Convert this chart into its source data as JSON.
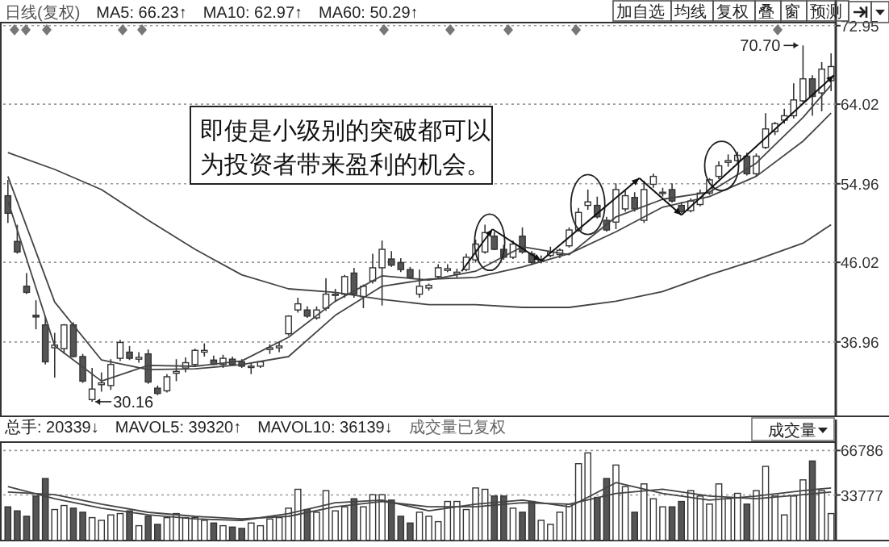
{
  "chart_data": [
    {
      "type": "candlestick",
      "categories": [
        null,
        null,
        null,
        null,
        null,
        null,
        null,
        null,
        null,
        null,
        null,
        null,
        null,
        null,
        null,
        null,
        null,
        null,
        null,
        null,
        null,
        null,
        null,
        null,
        null,
        null,
        null,
        null,
        null,
        null,
        null,
        null,
        null,
        null,
        null,
        null,
        null,
        null,
        null,
        null,
        null,
        null,
        null,
        null,
        null,
        null,
        null,
        null,
        null,
        null,
        null,
        null,
        null,
        null,
        null,
        null,
        null,
        null,
        null,
        null,
        null,
        null,
        null,
        null,
        null,
        null,
        null,
        null,
        null,
        null,
        null,
        null,
        null,
        null,
        null,
        null,
        null,
        null,
        null,
        null,
        null,
        null,
        null,
        null,
        null,
        null,
        null,
        null,
        null
      ],
      "ohlc": [
        [
          53.6,
          55.4,
          50.5,
          51.6
        ],
        [
          48.4,
          50.3,
          47.0,
          47.2
        ],
        [
          43.3,
          44.8,
          42.4,
          42.6
        ],
        [
          40.0,
          41.7,
          38.4,
          39.8
        ],
        [
          38.9,
          39.9,
          34.4,
          34.7
        ],
        [
          36.3,
          38.0,
          32.9,
          36.6
        ],
        [
          36.2,
          39.0,
          35.6,
          38.9
        ],
        [
          38.9,
          39.2,
          35.2,
          35.3
        ],
        [
          35.3,
          35.6,
          32.3,
          32.5
        ],
        [
          30.4,
          34.0,
          30.16,
          31.6
        ],
        [
          32.1,
          33.5,
          31.3,
          32.3
        ],
        [
          32.0,
          35.0,
          31.5,
          34.4
        ],
        [
          35.1,
          37.2,
          34.8,
          36.9
        ],
        [
          35.8,
          36.5,
          34.9,
          35.1
        ],
        [
          35.0,
          35.8,
          34.6,
          35.2
        ],
        [
          35.6,
          36.1,
          32.2,
          32.4
        ],
        [
          31.7,
          32.0,
          30.9,
          31.1
        ],
        [
          31.4,
          33.3,
          31.2,
          33.0
        ],
        [
          33.4,
          35.0,
          32.5,
          33.6
        ],
        [
          34.0,
          35.2,
          33.5,
          34.6
        ],
        [
          34.4,
          36.2,
          34.2,
          36.0
        ],
        [
          35.8,
          36.8,
          35.3,
          36.0
        ],
        [
          34.9,
          35.4,
          34.3,
          34.4
        ],
        [
          34.4,
          35.5,
          34.0,
          35.1
        ],
        [
          35.0,
          35.3,
          34.3,
          34.4
        ],
        [
          34.7,
          35.0,
          34.0,
          34.2
        ],
        [
          34.1,
          34.6,
          33.3,
          34.2
        ],
        [
          34.2,
          34.8,
          34.0,
          34.7
        ],
        [
          36.1,
          36.7,
          35.6,
          36.3
        ],
        [
          36.3,
          37.0,
          35.8,
          36.5
        ],
        [
          37.9,
          40.0,
          37.7,
          39.9
        ],
        [
          40.6,
          42.0,
          40.3,
          41.3
        ],
        [
          40.6,
          41.0,
          39.7,
          39.9
        ],
        [
          39.7,
          41.0,
          39.5,
          40.6
        ],
        [
          40.8,
          44.2,
          40.5,
          42.4
        ],
        [
          42.3,
          43.0,
          41.5,
          42.4
        ],
        [
          42.4,
          44.6,
          42.0,
          44.4
        ],
        [
          44.8,
          45.4,
          42.0,
          42.4
        ],
        [
          42.1,
          43.5,
          40.8,
          43.3
        ],
        [
          43.9,
          47.0,
          43.6,
          45.4
        ],
        [
          45.4,
          48.5,
          41.1,
          47.5
        ],
        [
          46.4,
          47.3,
          45.5,
          45.7
        ],
        [
          46.0,
          46.5,
          44.9,
          45.2
        ],
        [
          45.2,
          45.5,
          44.1,
          44.3
        ],
        [
          42.4,
          45.2,
          42.0,
          43.3
        ],
        [
          43.1,
          43.6,
          42.8,
          43.4
        ],
        [
          44.4,
          45.8,
          44.2,
          45.4
        ],
        [
          45.1,
          45.8,
          44.9,
          45.3
        ],
        [
          44.7,
          45.3,
          44.3,
          44.9
        ],
        [
          45.2,
          47.0,
          45.0,
          46.6
        ],
        [
          46.3,
          48.6,
          46.0,
          48.1
        ],
        [
          47.2,
          50.3,
          47.0,
          49.4
        ],
        [
          49.0,
          49.5,
          47.4,
          47.5
        ],
        [
          47.5,
          48.0,
          46.3,
          46.6
        ],
        [
          46.6,
          48.5,
          46.4,
          48.1
        ],
        [
          49.0,
          50.0,
          47.0,
          47.2
        ],
        [
          47.0,
          47.3,
          45.7,
          46.0
        ],
        [
          46.1,
          46.8,
          45.9,
          46.3
        ],
        [
          46.8,
          47.8,
          46.6,
          47.2
        ],
        [
          46.9,
          47.6,
          46.5,
          47.4
        ],
        [
          47.9,
          50.0,
          47.7,
          49.7
        ],
        [
          49.7,
          52.2,
          49.5,
          51.7
        ],
        [
          52.5,
          54.3,
          52.0,
          52.9
        ],
        [
          52.5,
          53.5,
          51.0,
          51.2
        ],
        [
          50.8,
          51.2,
          49.5,
          49.7
        ],
        [
          50.6,
          55.0,
          49.8,
          54.3
        ],
        [
          52.1,
          54.3,
          51.8,
          53.6
        ],
        [
          53.4,
          54.0,
          51.8,
          52.1
        ],
        [
          50.8,
          55.3,
          50.5,
          54.3
        ],
        [
          54.9,
          56.1,
          54.5,
          55.8
        ],
        [
          53.9,
          54.5,
          53.5,
          54.0
        ],
        [
          54.3,
          55.0,
          52.8,
          53.0
        ],
        [
          52.5,
          52.9,
          51.6,
          51.8
        ],
        [
          51.9,
          53.3,
          51.7,
          53.0
        ],
        [
          52.6,
          54.3,
          52.4,
          53.9
        ],
        [
          53.9,
          55.6,
          53.7,
          55.4
        ],
        [
          55.8,
          57.5,
          55.5,
          57.0
        ],
        [
          57.4,
          58.3,
          56.9,
          57.6
        ],
        [
          57.6,
          58.6,
          57.2,
          58.2
        ],
        [
          58.1,
          58.5,
          55.9,
          56.1
        ],
        [
          56.1,
          58.4,
          55.8,
          58.1
        ],
        [
          59.1,
          63.0,
          58.9,
          61.2
        ],
        [
          60.9,
          62.0,
          60.5,
          61.8
        ],
        [
          62.2,
          63.5,
          61.8,
          62.7
        ],
        [
          62.7,
          66.4,
          62.4,
          64.5
        ],
        [
          64.4,
          70.7,
          64.2,
          66.9
        ],
        [
          66.9,
          67.3,
          62.7,
          64.9
        ],
        [
          65.3,
          68.8,
          63.2,
          68.0
        ],
        [
          66.7,
          69.8,
          65.5,
          68.3
        ]
      ],
      "colors": [
        "#555555",
        "#555555",
        "#555555",
        "#555555",
        "#555555",
        "#ffffff",
        "#ffffff",
        "#555555",
        "#555555",
        "#ffffff",
        "#ffffff",
        "#ffffff",
        "#ffffff",
        "#555555",
        "#ffffff",
        "#555555",
        "#555555",
        "#ffffff",
        "#ffffff",
        "#ffffff",
        "#ffffff",
        "#ffffff",
        "#555555",
        "#ffffff",
        "#555555",
        "#555555",
        "#ffffff",
        "#ffffff",
        "#ffffff",
        "#ffffff",
        "#ffffff",
        "#ffffff",
        "#555555",
        "#ffffff",
        "#ffffff",
        "#ffffff",
        "#ffffff",
        "#555555",
        "#ffffff",
        "#ffffff",
        "#ffffff",
        "#555555",
        "#555555",
        "#555555",
        "#ffffff",
        "#ffffff",
        "#ffffff",
        "#ffffff",
        "#ffffff",
        "#ffffff",
        "#ffffff",
        "#ffffff",
        "#555555",
        "#555555",
        "#ffffff",
        "#555555",
        "#555555",
        "#ffffff",
        "#ffffff",
        "#ffffff",
        "#ffffff",
        "#ffffff",
        "#ffffff",
        "#555555",
        "#555555",
        "#ffffff",
        "#ffffff",
        "#555555",
        "#ffffff",
        "#ffffff",
        "#ffffff",
        "#555555",
        "#555555",
        "#ffffff",
        "#ffffff",
        "#ffffff",
        "#ffffff",
        "#ffffff",
        "#ffffff",
        "#555555",
        "#ffffff",
        "#ffffff",
        "#ffffff",
        "#ffffff",
        "#ffffff",
        "#ffffff",
        "#555555",
        "#ffffff",
        "#ffffff"
      ],
      "series": [
        {
          "type": "line",
          "color": "#444444",
          "values": [
            53.0,
            null,
            null,
            null,
            null,
            36.5,
            null,
            null,
            null,
            null,
            32.5,
            null,
            null,
            null,
            null,
            34.3,
            null,
            null,
            null,
            null,
            34.2,
            null,
            null,
            null,
            null,
            34.8,
            null,
            null,
            null,
            null,
            37.5,
            null,
            null,
            null,
            null,
            41.6,
            null,
            null,
            null,
            null,
            44.5,
            null,
            null,
            null,
            null,
            44.0,
            null,
            null,
            null,
            null,
            45.0,
            null,
            null,
            null,
            null,
            47.8,
            null,
            null,
            null,
            null,
            46.9,
            null,
            null,
            null,
            null,
            51.2,
            null,
            null,
            null,
            null,
            53.2,
            null,
            null,
            null,
            null,
            54.0,
            null,
            null,
            null,
            null,
            57.3,
            null,
            null,
            null,
            null,
            62.5,
            null,
            null,
            66.2
          ]
        },
        {
          "type": "line",
          "color": "#444444",
          "values": [
            55.8,
            null,
            null,
            null,
            null,
            41.5,
            null,
            null,
            null,
            null,
            34.9,
            null,
            null,
            null,
            null,
            33.8,
            null,
            null,
            null,
            null,
            33.9,
            null,
            null,
            null,
            null,
            34.4,
            null,
            null,
            null,
            null,
            35.3,
            null,
            null,
            null,
            null,
            40.0,
            null,
            null,
            null,
            null,
            43.3,
            null,
            null,
            null,
            null,
            44.1,
            null,
            null,
            null,
            null,
            44.3,
            null,
            null,
            null,
            null,
            45.5,
            null,
            null,
            null,
            null,
            47.0,
            null,
            null,
            null,
            null,
            49.5,
            null,
            null,
            null,
            null,
            52.3,
            null,
            null,
            null,
            null,
            53.5,
            null,
            null,
            null,
            null,
            55.8,
            null,
            null,
            null,
            null,
            59.8,
            null,
            null,
            63.0
          ]
        },
        {
          "type": "line",
          "color": "#444444",
          "values": [
            58.5,
            null,
            null,
            null,
            null,
            56.6,
            null,
            null,
            null,
            null,
            54.3,
            null,
            null,
            null,
            null,
            50.8,
            null,
            null,
            null,
            null,
            47.5,
            null,
            null,
            null,
            null,
            44.6,
            null,
            null,
            null,
            null,
            43.0,
            null,
            null,
            null,
            null,
            42.6,
            null,
            null,
            null,
            null,
            41.8,
            null,
            null,
            null,
            null,
            41.2,
            null,
            null,
            null,
            null,
            41.2,
            null,
            null,
            null,
            null,
            40.9,
            null,
            null,
            null,
            null,
            40.9,
            null,
            null,
            null,
            null,
            41.6,
            null,
            null,
            null,
            null,
            42.7,
            null,
            null,
            null,
            null,
            44.6,
            null,
            null,
            null,
            null,
            46.3,
            null,
            null,
            null,
            null,
            48.2,
            null,
            null,
            50.3
          ]
        }
      ],
      "ylim": [
        28.5,
        73.3
      ],
      "yticks": [
        36.96,
        46.02,
        54.96,
        64.02,
        72.95
      ],
      "grid": "y",
      "tick_labels": "y",
      "annotations": [
        "日线(复权)",
        "MA5: 66.23↑",
        "MA10: 62.97↑",
        "MA60: 50.29↑",
        "加自选",
        "均线",
        "复权",
        "叠",
        "窗",
        "预测",
        "即使是小级别的突破都可以为投资者带来盈利的机会。",
        "70.70",
        "30.16"
      ]
    },
    {
      "type": "bar",
      "categories": [
        null,
        null,
        null,
        null,
        null,
        null,
        null,
        null,
        null,
        null,
        null,
        null,
        null,
        null,
        null,
        null,
        null,
        null,
        null,
        null,
        null,
        null,
        null,
        null,
        null,
        null,
        null,
        null,
        null,
        null,
        null,
        null,
        null,
        null,
        null,
        null,
        null,
        null,
        null,
        null,
        null,
        null,
        null,
        null,
        null,
        null,
        null,
        null,
        null,
        null,
        null,
        null,
        null,
        null,
        null,
        null,
        null,
        null,
        null,
        null,
        null,
        null,
        null,
        null,
        null,
        null,
        null,
        null,
        null,
        null,
        null,
        null,
        null,
        null,
        null,
        null,
        null,
        null,
        null,
        null,
        null,
        null,
        null,
        null,
        null,
        null,
        null,
        null,
        null
      ],
      "values": [
        25000,
        22000,
        18000,
        33000,
        46000,
        23000,
        26000,
        24000,
        21000,
        17000,
        15000,
        19000,
        20000,
        22000,
        11000,
        18000,
        12000,
        17000,
        20000,
        17000,
        17000,
        15000,
        13000,
        11000,
        10000,
        9000,
        13000,
        11000,
        16000,
        17000,
        24000,
        38000,
        23000,
        21000,
        37000,
        22000,
        25000,
        31000,
        25000,
        34000,
        34000,
        30000,
        18000,
        13000,
        21000,
        18000,
        14000,
        29000,
        29000,
        23000,
        39000,
        38000,
        33000,
        33000,
        24000,
        21000,
        29000,
        15000,
        12000,
        21000,
        27000,
        57000,
        65000,
        32000,
        46000,
        56000,
        40000,
        21000,
        42000,
        31000,
        25000,
        25000,
        29000,
        37000,
        33000,
        27000,
        42000,
        31000,
        35000,
        27000,
        37000,
        55000,
        33000,
        19000,
        33000,
        45000,
        59000,
        37000,
        20000
      ],
      "colors": [
        "#555555",
        "#555555",
        "#555555",
        "#555555",
        "#555555",
        "#ffffff",
        "#ffffff",
        "#555555",
        "#555555",
        "#ffffff",
        "#ffffff",
        "#ffffff",
        "#ffffff",
        "#555555",
        "#ffffff",
        "#555555",
        "#555555",
        "#ffffff",
        "#ffffff",
        "#ffffff",
        "#ffffff",
        "#ffffff",
        "#555555",
        "#ffffff",
        "#555555",
        "#555555",
        "#ffffff",
        "#ffffff",
        "#ffffff",
        "#ffffff",
        "#ffffff",
        "#ffffff",
        "#555555",
        "#ffffff",
        "#ffffff",
        "#ffffff",
        "#ffffff",
        "#555555",
        "#ffffff",
        "#ffffff",
        "#ffffff",
        "#555555",
        "#555555",
        "#555555",
        "#ffffff",
        "#ffffff",
        "#ffffff",
        "#ffffff",
        "#ffffff",
        "#ffffff",
        "#ffffff",
        "#ffffff",
        "#555555",
        "#555555",
        "#ffffff",
        "#555555",
        "#555555",
        "#ffffff",
        "#ffffff",
        "#ffffff",
        "#ffffff",
        "#ffffff",
        "#ffffff",
        "#555555",
        "#555555",
        "#ffffff",
        "#ffffff",
        "#555555",
        "#ffffff",
        "#ffffff",
        "#ffffff",
        "#555555",
        "#555555",
        "#ffffff",
        "#ffffff",
        "#ffffff",
        "#ffffff",
        "#ffffff",
        "#ffffff",
        "#555555",
        "#ffffff",
        "#ffffff",
        "#ffffff",
        "#ffffff",
        "#ffffff",
        "#ffffff",
        "#555555",
        "#ffffff",
        "#ffffff"
      ],
      "series": [
        {
          "type": "line",
          "color": "#444444",
          "values": [
            40000,
            null,
            null,
            null,
            null,
            31000,
            null,
            null,
            null,
            null,
            24000,
            null,
            null,
            null,
            null,
            19000,
            null,
            null,
            null,
            null,
            16000,
            null,
            null,
            null,
            null,
            15000,
            null,
            null,
            null,
            null,
            20000,
            null,
            null,
            null,
            null,
            28000,
            null,
            null,
            null,
            null,
            30000,
            null,
            null,
            null,
            null,
            22000,
            null,
            null,
            null,
            null,
            27000,
            null,
            null,
            null,
            null,
            30000,
            null,
            null,
            null,
            null,
            25000,
            null,
            null,
            null,
            null,
            43000,
            null,
            null,
            null,
            null,
            35000,
            null,
            null,
            null,
            null,
            30000,
            null,
            null,
            null,
            null,
            33000,
            null,
            null,
            null,
            null,
            37000,
            null,
            null,
            39000
          ]
        },
        {
          "type": "line",
          "color": "#444444",
          "values": [
            36000,
            null,
            null,
            null,
            null,
            34000,
            null,
            null,
            null,
            null,
            27000,
            null,
            null,
            null,
            null,
            21000,
            null,
            null,
            null,
            null,
            18000,
            null,
            null,
            null,
            null,
            16000,
            null,
            null,
            null,
            null,
            18000,
            null,
            null,
            null,
            null,
            25000,
            null,
            null,
            null,
            null,
            29000,
            null,
            null,
            null,
            null,
            25000,
            null,
            null,
            null,
            null,
            25000,
            null,
            null,
            null,
            null,
            28000,
            null,
            null,
            null,
            null,
            27000,
            null,
            null,
            null,
            null,
            35000,
            null,
            null,
            null,
            null,
            38000,
            null,
            null,
            null,
            null,
            33000,
            null,
            null,
            null,
            null,
            31000,
            null,
            null,
            null,
            null,
            34000,
            null,
            null,
            36000
          ]
        }
      ],
      "ylim": [
        0,
        73000
      ],
      "yticks": [
        33777,
        66786
      ],
      "grid": "y",
      "tick_labels": "y",
      "annotations": [
        "总手: 20339↓",
        "MAVOL5: 39320↑",
        "MAVOL10: 36139↓",
        "成交量已复权",
        "成交量"
      ]
    }
  ]
}
